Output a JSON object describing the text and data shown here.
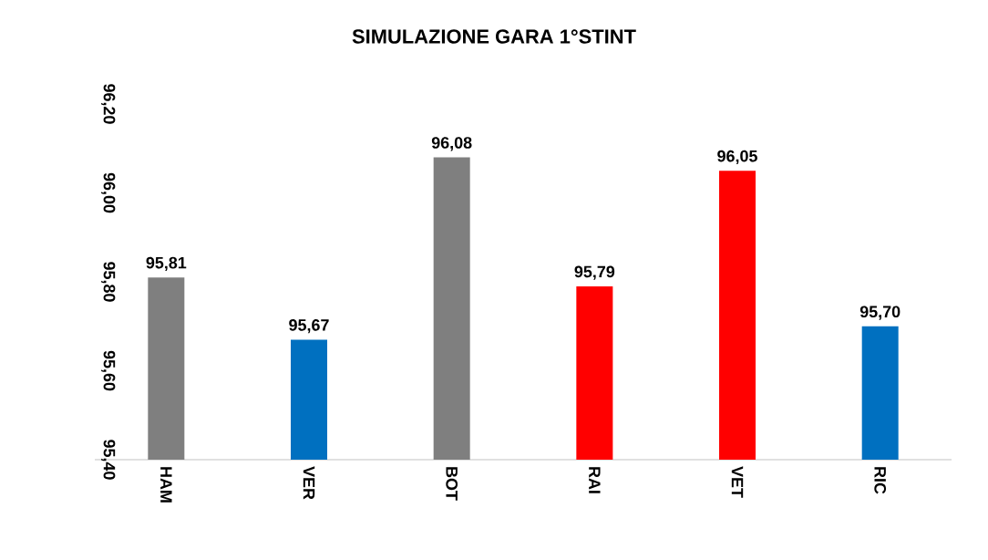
{
  "chart_data": {
    "type": "bar",
    "title": "SIMULAZIONE GARA 1°STINT",
    "categories": [
      "HAM",
      "VER",
      "BOT",
      "RAI",
      "VET",
      "RIC"
    ],
    "values": [
      95.81,
      95.67,
      96.08,
      95.79,
      96.05,
      95.7
    ],
    "value_labels": [
      "95,81",
      "95,67",
      "96,08",
      "95,79",
      "96,05",
      "95,70"
    ],
    "colors": [
      "#7f7f7f",
      "#0070c0",
      "#7f7f7f",
      "#ff0000",
      "#ff0000",
      "#0070c0"
    ],
    "ylim": [
      95.4,
      96.2
    ],
    "yticks": [
      {
        "value": 95.4,
        "label": "95,40"
      },
      {
        "value": 95.6,
        "label": "95,60"
      },
      {
        "value": 95.8,
        "label": "95,80"
      },
      {
        "value": 96.0,
        "label": "96,00"
      },
      {
        "value": 96.2,
        "label": "96,20"
      }
    ]
  }
}
